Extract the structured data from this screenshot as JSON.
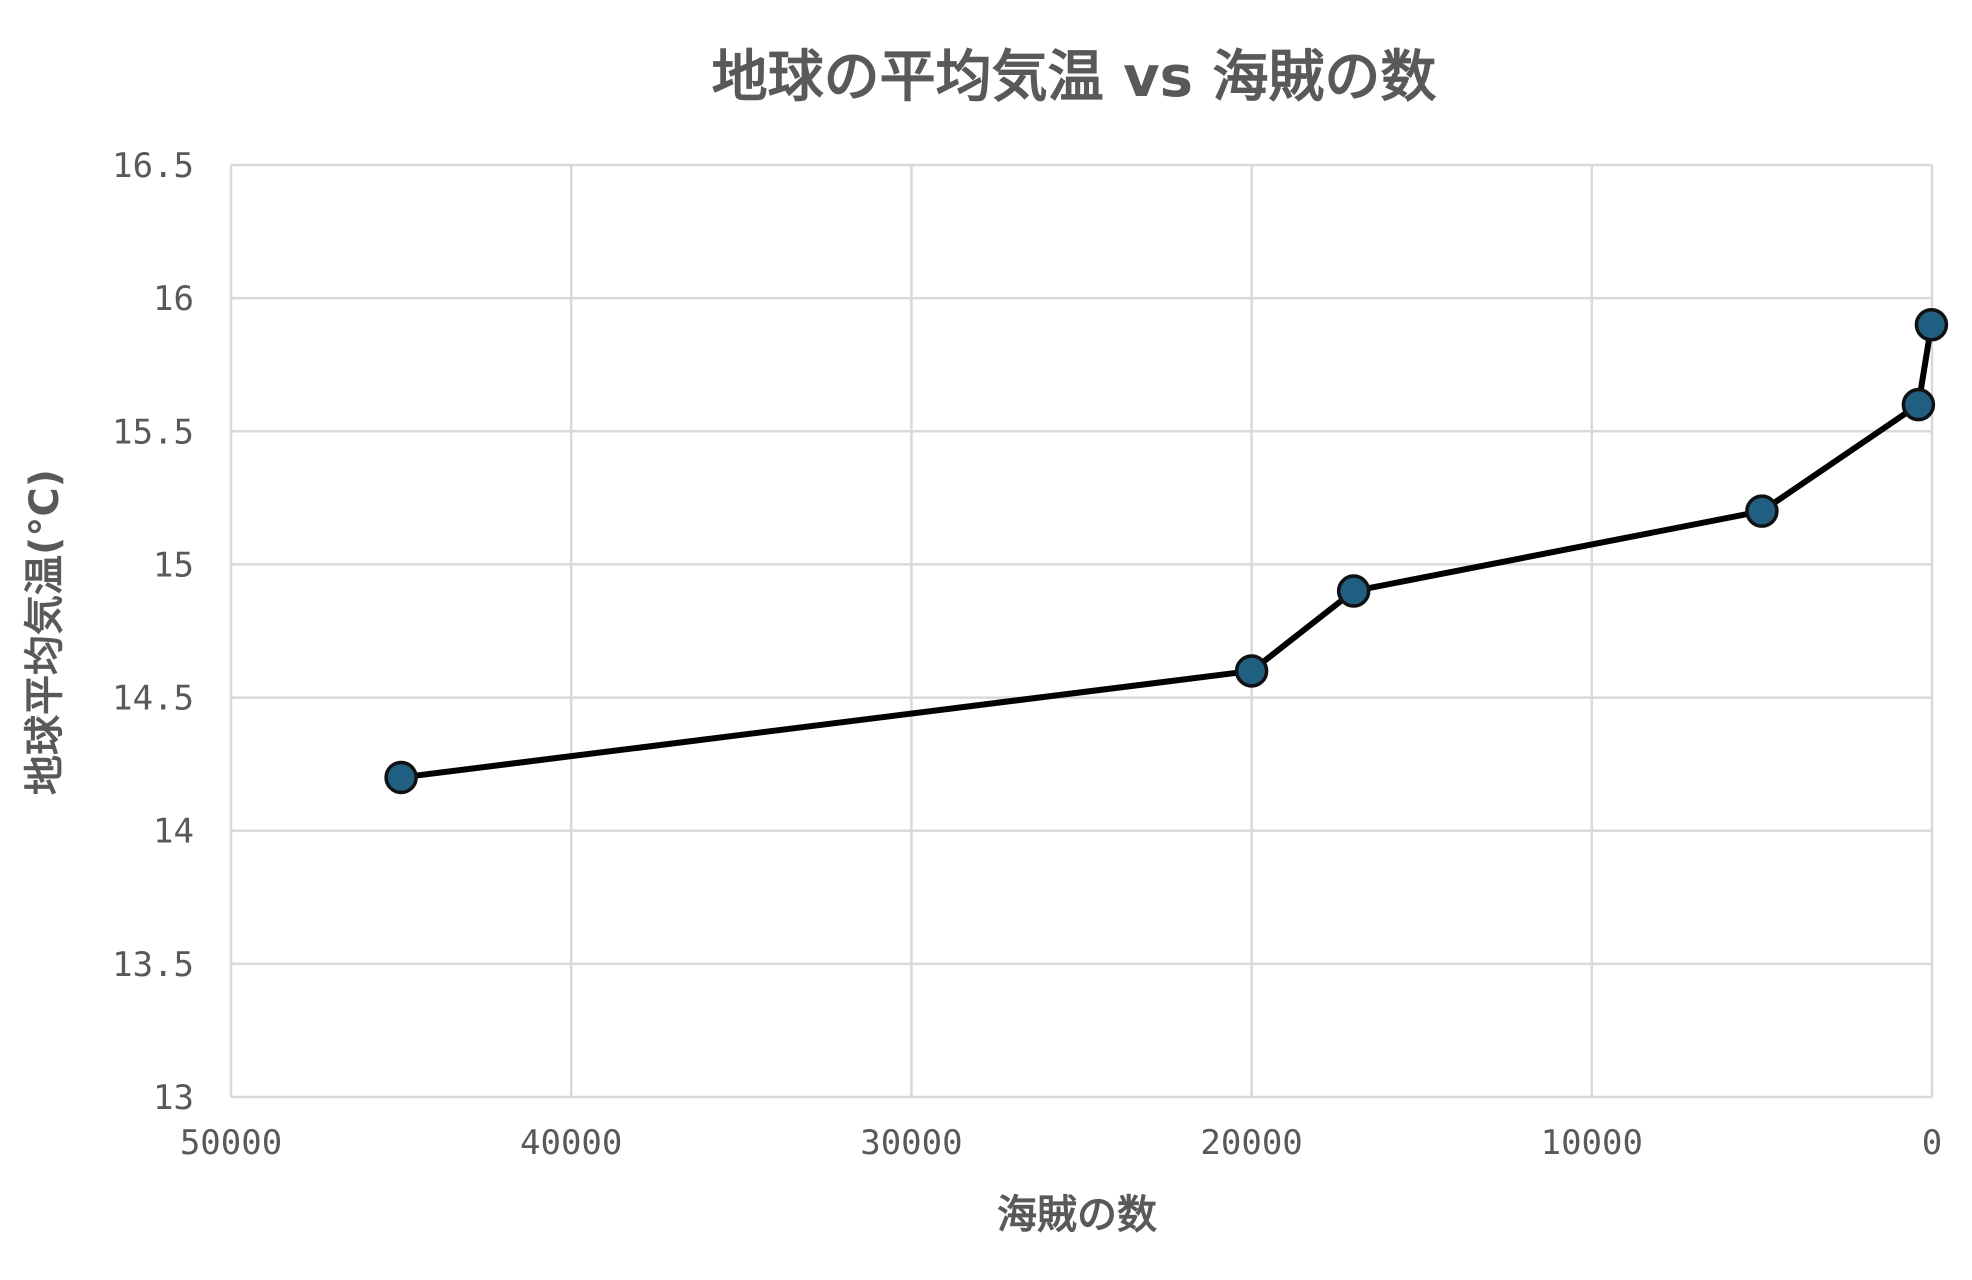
{
  "chart_data": {
    "type": "line",
    "title": "地球の平均気温 vs 海賊の数",
    "xlabel": "海賊の数",
    "ylabel": "地球平均気温(°C)",
    "xlim": [
      50000,
      0
    ],
    "x_reversed": true,
    "ylim": [
      13,
      16.5
    ],
    "x_ticks": [
      50000,
      40000,
      30000,
      20000,
      10000,
      0
    ],
    "y_ticks": [
      13,
      13.5,
      14,
      14.5,
      15,
      15.5,
      16,
      16.5
    ],
    "x_tick_labels": [
      "50000",
      "40000",
      "30000",
      "20000",
      "10000",
      "0"
    ],
    "y_tick_labels": [
      "13",
      "13.5",
      "14",
      "14.5",
      "15",
      "15.5",
      "16",
      "16.5"
    ],
    "grid": true,
    "series": [
      {
        "x": [
          45000,
          20000,
          17000,
          5000,
          400,
          17
        ],
        "y": [
          14.2,
          14.6,
          14.9,
          15.2,
          15.6,
          15.9
        ],
        "line_color": "#000000",
        "marker_color": "#1f5f82",
        "marker_edge_color": "#111111"
      }
    ]
  }
}
